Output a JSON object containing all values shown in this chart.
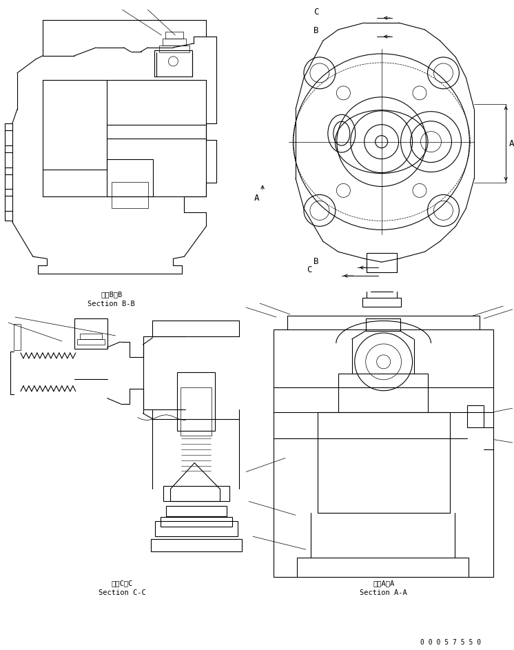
{
  "bg_color": "#ffffff",
  "line_color": "#000000",
  "fig_width": 7.46,
  "fig_height": 9.43,
  "dpi": 100,
  "label_bb_jp": "断面B－B",
  "label_bb_en": "Section B-B",
  "label_cc_jp": "断面C－C",
  "label_cc_en": "Section C-C",
  "label_aa_jp": "断面A－A",
  "label_aa_en": "Section A-A",
  "part_number": "0 0 0 5 7 5 5 0"
}
